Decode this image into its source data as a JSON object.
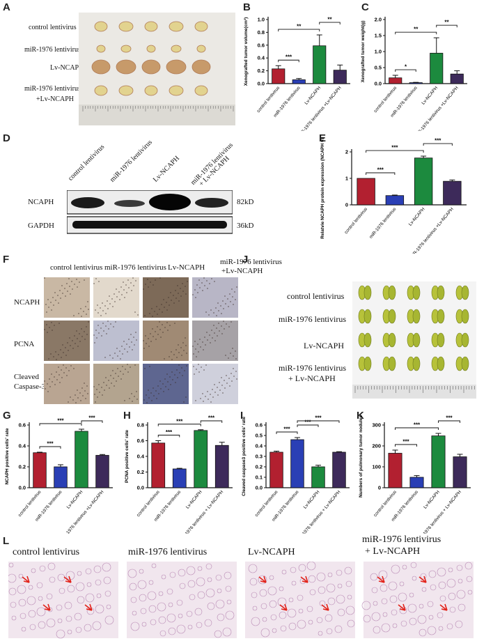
{
  "panels": {
    "A": {
      "label": "A",
      "rows": [
        "control lentivirus",
        "miR-1976 lentivirus",
        "Lv-NCAPH",
        "miR-1976 lentivirus",
        "+Lv-NCAPH"
      ]
    },
    "B": {
      "label": "B"
    },
    "C": {
      "label": "C"
    },
    "D": {
      "label": "D",
      "columns": [
        "control lentivirus",
        "miR-1976 lentivirus",
        "Lv-NCAPH",
        "miR-1976 lentivirus",
        "+ Lv-NCAPH"
      ],
      "bands": [
        {
          "name": "NCAPH",
          "size": "82kD"
        },
        {
          "name": "GAPDH",
          "size": "36kD"
        }
      ]
    },
    "E": {
      "label": "E"
    },
    "F": {
      "label": "F",
      "columns": [
        "control lentivirus",
        "miR-1976 lentivirus",
        "Lv-NCAPH",
        "miR-1976 lentivirus",
        "+Lv-NCAPH"
      ],
      "rows": [
        "NCAPH",
        "PCNA",
        "Cleaved",
        "Caspase-3"
      ]
    },
    "G": {
      "label": "G"
    },
    "H": {
      "label": "H"
    },
    "I": {
      "label": "I"
    },
    "J": {
      "label": "J",
      "rows": [
        "control lentivirus",
        "miR-1976 lentivirus",
        "Lv-NCAPH",
        "miR-1976 lentivirus",
        "+ Lv-NCAPH"
      ]
    },
    "K": {
      "label": "K"
    },
    "L": {
      "label": "L",
      "columns": [
        "control lentivirus",
        "miR-1976 lentivirus",
        "Lv-NCAPH",
        "miR-1976 lentivirus",
        "+ Lv-NCAPH"
      ]
    }
  },
  "colors": {
    "control": "#b22030",
    "mir": "#2a3fb5",
    "lv": "#1c8a3e",
    "combo": "#3d2a5a"
  },
  "chart_data": [
    {
      "id": "B",
      "type": "bar",
      "categories": [
        "control lentivirus",
        "miR-1976 lentivirus",
        "Lv-NCAPH",
        "miR-1976 lentivirus +Lv-NCAPH"
      ],
      "values": [
        0.23,
        0.06,
        0.59,
        0.21
      ],
      "errors": [
        0.05,
        0.02,
        0.17,
        0.08
      ],
      "ylabel": "Xenografted tumor volume(cm³)",
      "ylim": [
        0,
        1.0
      ],
      "yticks": [
        "0.0",
        "0.2",
        "0.4",
        "0.6",
        "0.8",
        "1.0"
      ],
      "sig": [
        {
          "a": 0,
          "b": 1,
          "t": "***"
        },
        {
          "a": 0,
          "b": 2,
          "t": "**"
        },
        {
          "a": 2,
          "b": 3,
          "t": "**"
        }
      ]
    },
    {
      "id": "C",
      "type": "bar",
      "categories": [
        "control lentivirus",
        "miR-1976 lentivirus",
        "Lv-NCAPH",
        "miR-1976 lentivirus +Lv-NCAPH"
      ],
      "values": [
        0.18,
        0.03,
        0.95,
        0.3
      ],
      "errors": [
        0.08,
        0.01,
        0.48,
        0.1
      ],
      "ylabel": "Xenografted tumor weight(g)",
      "ylim": [
        0,
        2.0
      ],
      "yticks": [
        "0.0",
        "0.5",
        "1.0",
        "1.5",
        "2.0"
      ],
      "sig": [
        {
          "a": 0,
          "b": 1,
          "t": "*"
        },
        {
          "a": 0,
          "b": 2,
          "t": "**"
        },
        {
          "a": 2,
          "b": 3,
          "t": "**"
        }
      ]
    },
    {
      "id": "E",
      "type": "bar",
      "categories": [
        "control lentivirus",
        "miR-1976 lentivirus",
        "Lv-NCAPH",
        "miR-1976 lentivirus +Lv-NCAPH"
      ],
      "values": [
        1.0,
        0.35,
        1.77,
        0.89
      ],
      "errors": [
        0.0,
        0.02,
        0.07,
        0.05
      ],
      "ylabel": "Relatvie NCAPH protein expression (NCAPH vs GAPDH)",
      "ylim": [
        0,
        2.0
      ],
      "yticks": [
        "0",
        "1",
        "2"
      ],
      "sig": [
        {
          "a": 0,
          "b": 1,
          "t": "***"
        },
        {
          "a": 0,
          "b": 2,
          "t": "***"
        },
        {
          "a": 2,
          "b": 3,
          "t": "***"
        }
      ]
    },
    {
      "id": "G",
      "type": "bar",
      "categories": [
        "control lentivirus",
        "miR-1976 lentivirus",
        "Lv-NCAPH",
        "miR-1976 lentivirus +Lv-NCAPH"
      ],
      "values": [
        0.335,
        0.2,
        0.54,
        0.31
      ],
      "errors": [
        0.005,
        0.02,
        0.02,
        0.008
      ],
      "ylabel": "NCAPH positive cells' rate",
      "ylim": [
        0,
        0.6
      ],
      "yticks": [
        "0.0",
        "0.2",
        "0.4",
        "0.6"
      ],
      "sig": [
        {
          "a": 0,
          "b": 1,
          "t": "***"
        },
        {
          "a": 0,
          "b": 2,
          "t": "***"
        },
        {
          "a": 2,
          "b": 3,
          "t": "***"
        }
      ]
    },
    {
      "id": "H",
      "type": "bar",
      "categories": [
        "control lentivirus",
        "miR-1976 lentivirus",
        "Lv-NCAPH",
        "miR-1976 lentivirus + Lv-NCAPH"
      ],
      "values": [
        0.57,
        0.24,
        0.73,
        0.54
      ],
      "errors": [
        0.03,
        0.008,
        0.01,
        0.04
      ],
      "ylabel": "PCNA positive cells' rate",
      "ylim": [
        0,
        0.8
      ],
      "yticks": [
        "0.0",
        "0.2",
        "0.4",
        "0.6",
        "0.8"
      ],
      "sig": [
        {
          "a": 0,
          "b": 1,
          "t": "***"
        },
        {
          "a": 0,
          "b": 2,
          "t": "***"
        },
        {
          "a": 2,
          "b": 3,
          "t": "***"
        }
      ]
    },
    {
      "id": "I",
      "type": "bar",
      "categories": [
        "control lentivirus",
        "miR-1976 lentivirus",
        "Lv-NCAPH",
        "miR-1976 lentivirus + Lv-NCAPH"
      ],
      "values": [
        0.34,
        0.46,
        0.2,
        0.34
      ],
      "errors": [
        0.01,
        0.02,
        0.015,
        0.005
      ],
      "ylabel": "Cleaved caspase3 positive cells' rate",
      "ylim": [
        0,
        0.6
      ],
      "yticks": [
        "0.0",
        "0.1",
        "0.2",
        "0.3",
        "0.4",
        "0.5",
        "0.6"
      ],
      "sig": [
        {
          "a": 0,
          "b": 1,
          "t": "***"
        },
        {
          "a": 1,
          "b": 2,
          "t": "***"
        },
        {
          "a": 1,
          "b": 3,
          "t": "***"
        }
      ]
    },
    {
      "id": "K",
      "type": "bar",
      "categories": [
        "control lentivirus",
        "miR-1976 lentivirus",
        "Lv-NCAPH",
        "miR-1976 lentivirus + Lv-NCAPH"
      ],
      "values": [
        165,
        50,
        248,
        148
      ],
      "errors": [
        15,
        8,
        12,
        12
      ],
      "ylabel": "Numbers of pulmonary tumor nodules",
      "ylim": [
        0,
        300
      ],
      "yticks": [
        "0",
        "100",
        "200",
        "300"
      ],
      "sig": [
        {
          "a": 0,
          "b": 1,
          "t": "***"
        },
        {
          "a": 0,
          "b": 2,
          "t": "***"
        },
        {
          "a": 2,
          "b": 3,
          "t": "***"
        }
      ]
    }
  ]
}
